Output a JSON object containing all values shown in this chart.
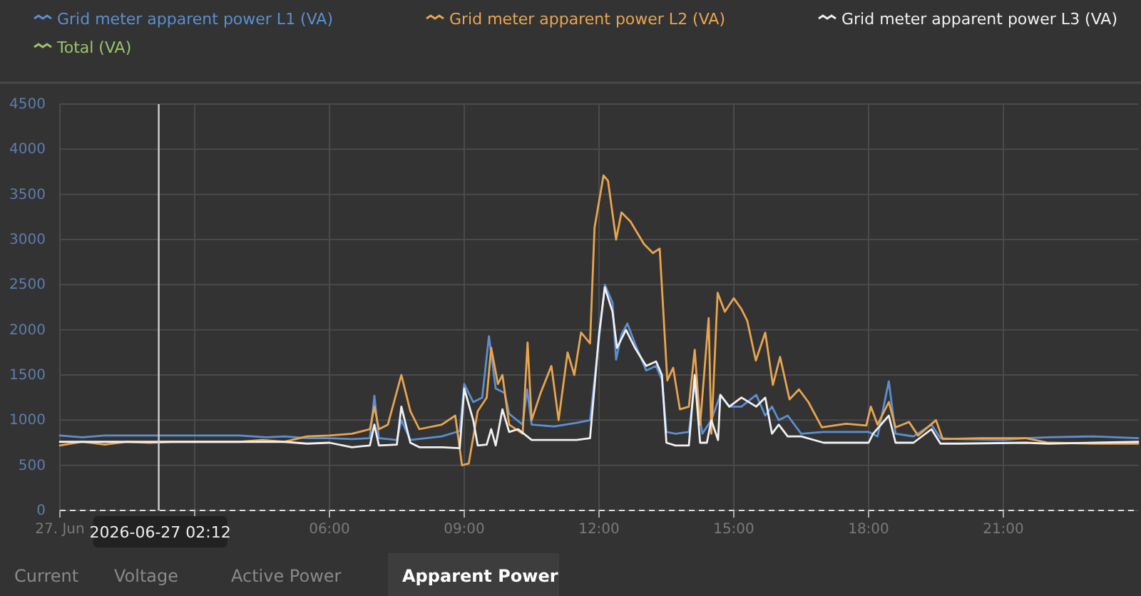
{
  "chart_data": {
    "type": "line",
    "legend": "top",
    "grid": true,
    "marker": "none",
    "line_style": "solid",
    "xlim": [
      0,
      24
    ],
    "ylim": [
      0,
      4500
    ],
    "xticks": [
      {
        "value": 0,
        "label": "27. Jun"
      },
      {
        "value": 3,
        "label": null
      },
      {
        "value": 6,
        "label": "06:00"
      },
      {
        "value": 9,
        "label": "09:00"
      },
      {
        "value": 12,
        "label": "12:00"
      },
      {
        "value": 15,
        "label": "15:00"
      },
      {
        "value": 18,
        "label": "18:00"
      },
      {
        "value": 21,
        "label": "21:00"
      }
    ],
    "yticks": [
      0,
      500,
      1000,
      1500,
      2000,
      2500,
      3000,
      3500,
      4000,
      4500
    ],
    "ref_lines": [
      {
        "axis": "x",
        "value": 2.2,
        "label": "2026-06-27 02:12",
        "color": "#cfcfcf"
      }
    ],
    "annotations": [
      "Current",
      "Voltage",
      "Active Power",
      "Apparent Power"
    ],
    "series": [
      {
        "name": "Grid meter apparent power L1 (VA)",
        "color": "#5b8fd0",
        "x": [
          0,
          0.5,
          1,
          2,
          3,
          4,
          4.6,
          5,
          5.5,
          6,
          6.5,
          6.9,
          7.0,
          7.1,
          7.5,
          7.6,
          7.8,
          8.5,
          8.9,
          9.0,
          9.2,
          9.4,
          9.55,
          9.7,
          9.9,
          10.0,
          10.3,
          10.4,
          10.5,
          11.0,
          11.5,
          11.8,
          12.0,
          12.13,
          12.3,
          12.38,
          12.5,
          12.63,
          12.8,
          13.05,
          13.27,
          13.4,
          13.5,
          13.7,
          14.0,
          14.13,
          14.3,
          14.5,
          14.7,
          14.9,
          15.17,
          15.5,
          15.7,
          15.85,
          16.0,
          16.2,
          16.5,
          17,
          18,
          18.2,
          18.45,
          18.6,
          19.0,
          19.4,
          19.6,
          20,
          21,
          21.5,
          22,
          23,
          24
        ],
        "values": [
          830,
          810,
          830,
          830,
          830,
          830,
          810,
          820,
          800,
          800,
          790,
          800,
          1270,
          800,
          780,
          1000,
          780,
          820,
          880,
          1400,
          1200,
          1250,
          1930,
          1350,
          1300,
          1070,
          950,
          1340,
          950,
          930,
          970,
          1000,
          1900,
          2500,
          2300,
          1670,
          1950,
          2070,
          1850,
          1550,
          1600,
          1450,
          870,
          850,
          870,
          1400,
          850,
          1000,
          1280,
          1150,
          1150,
          1280,
          1050,
          1150,
          1000,
          1050,
          850,
          870,
          870,
          820,
          1430,
          850,
          820,
          950,
          800,
          790,
          780,
          800,
          810,
          820,
          800
        ]
      },
      {
        "name": "Grid meter apparent power L2 (VA)",
        "color": "#e8a550",
        "x": [
          0,
          0.5,
          1,
          1.5,
          2,
          2.5,
          3,
          4,
          4.5,
          5,
          5.5,
          6,
          6.5,
          6.9,
          7.0,
          7.1,
          7.3,
          7.6,
          7.8,
          8.0,
          8.5,
          8.8,
          8.95,
          9.1,
          9.3,
          9.5,
          9.6,
          9.75,
          9.85,
          10.0,
          10.3,
          10.41,
          10.5,
          10.7,
          10.94,
          11.1,
          11.3,
          11.45,
          11.6,
          11.8,
          11.9,
          12.1,
          12.2,
          12.38,
          12.5,
          12.7,
          13.0,
          13.2,
          13.35,
          13.52,
          13.65,
          13.8,
          14.0,
          14.13,
          14.25,
          14.44,
          14.5,
          14.64,
          14.8,
          15.0,
          15.17,
          15.3,
          15.49,
          15.7,
          15.87,
          16.03,
          16.24,
          16.45,
          16.66,
          16.96,
          17.5,
          17.95,
          18.05,
          18.2,
          18.45,
          18.6,
          18.9,
          19.1,
          19.5,
          19.65,
          20.5,
          21.5,
          22.0,
          23,
          24
        ],
        "values": [
          720,
          760,
          730,
          760,
          750,
          760,
          760,
          760,
          780,
          760,
          820,
          830,
          850,
          900,
          1150,
          900,
          950,
          1500,
          1100,
          900,
          950,
          1050,
          500,
          520,
          1100,
          1250,
          1800,
          1400,
          1500,
          950,
          850,
          1860,
          1000,
          1300,
          1600,
          1000,
          1750,
          1500,
          1970,
          1850,
          3130,
          3710,
          3650,
          3000,
          3300,
          3200,
          2950,
          2850,
          2900,
          1440,
          1580,
          1120,
          1150,
          1780,
          950,
          2130,
          850,
          2410,
          2200,
          2350,
          2230,
          2100,
          1660,
          1970,
          1390,
          1700,
          1230,
          1340,
          1200,
          920,
          960,
          940,
          1150,
          950,
          1200,
          920,
          980,
          830,
          1000,
          790,
          800,
          800,
          750,
          740,
          740
        ]
      },
      {
        "name": "Grid meter apparent power L3 (VA)",
        "color": "#f0f0f0",
        "x": [
          0,
          3,
          4,
          5,
          5.5,
          6,
          6.5,
          6.9,
          7.0,
          7.1,
          7.5,
          7.6,
          7.8,
          8.0,
          8.5,
          8.9,
          9.0,
          9.2,
          9.3,
          9.5,
          9.6,
          9.7,
          9.85,
          10.0,
          10.2,
          10.5,
          11.0,
          11.5,
          11.8,
          12.0,
          12.13,
          12.3,
          12.4,
          12.6,
          12.8,
          13.05,
          13.27,
          13.4,
          13.5,
          13.7,
          14.0,
          14.13,
          14.25,
          14.4,
          14.5,
          14.65,
          14.7,
          14.9,
          15.17,
          15.5,
          15.7,
          15.85,
          16.0,
          16.2,
          16.5,
          17.0,
          18,
          18.1,
          18.45,
          18.6,
          19,
          19.4,
          19.6,
          20,
          21.5,
          22,
          24
        ],
        "values": [
          760,
          760,
          760,
          760,
          740,
          750,
          700,
          720,
          950,
          720,
          730,
          1150,
          750,
          700,
          700,
          690,
          1350,
          1000,
          720,
          730,
          900,
          720,
          1120,
          870,
          900,
          780,
          780,
          780,
          800,
          1950,
          2470,
          2200,
          1800,
          2000,
          1800,
          1600,
          1650,
          1500,
          750,
          720,
          720,
          1500,
          750,
          750,
          1000,
          780,
          1280,
          1150,
          1250,
          1150,
          1250,
          850,
          950,
          820,
          820,
          750,
          750,
          850,
          1050,
          750,
          750,
          900,
          740,
          740,
          750,
          740,
          760
        ]
      },
      {
        "name": "Total (VA)",
        "color": "#9cc36a"
      }
    ]
  }
}
